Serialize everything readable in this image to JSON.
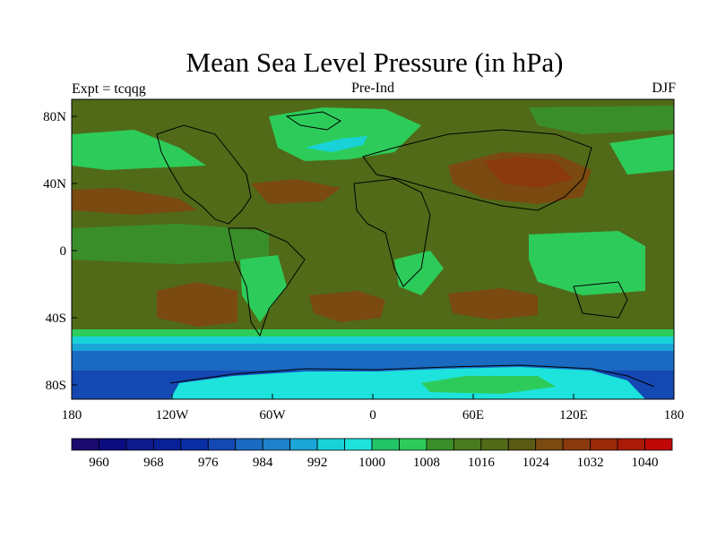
{
  "title": "Mean Sea Level Pressure (in hPa)",
  "subtitle": {
    "left": "Expt = tcqqg",
    "center": "Pre-Ind",
    "right": "DJF"
  },
  "map": {
    "lat_labels": [
      "80N",
      "40N",
      "0",
      "40S",
      "80S"
    ],
    "lon_labels": [
      "180",
      "120W",
      "60W",
      "0",
      "60E",
      "120E",
      "180"
    ]
  },
  "colorbar": {
    "labels": [
      "960",
      "968",
      "976",
      "984",
      "992",
      "1000",
      "1008",
      "1016",
      "1024",
      "1032",
      "1040"
    ],
    "colors": [
      "#1a0a6e",
      "#0c0c80",
      "#0f1a8f",
      "#0a2096",
      "#0a2ea5",
      "#1448b3",
      "#1a6ac2",
      "#1e82cc",
      "#1ba6d8",
      "#18d2d8",
      "#1ee2dc",
      "#22c466",
      "#2dcc5a",
      "#3a8e2a",
      "#4a7a1e",
      "#506a18",
      "#5a5a12",
      "#7a4a10",
      "#8a3a0e",
      "#9a2a0a",
      "#aa1a08",
      "#c00808"
    ]
  },
  "colors": {
    "ocean_base": "#506a18",
    "land_contour": "#000000"
  }
}
